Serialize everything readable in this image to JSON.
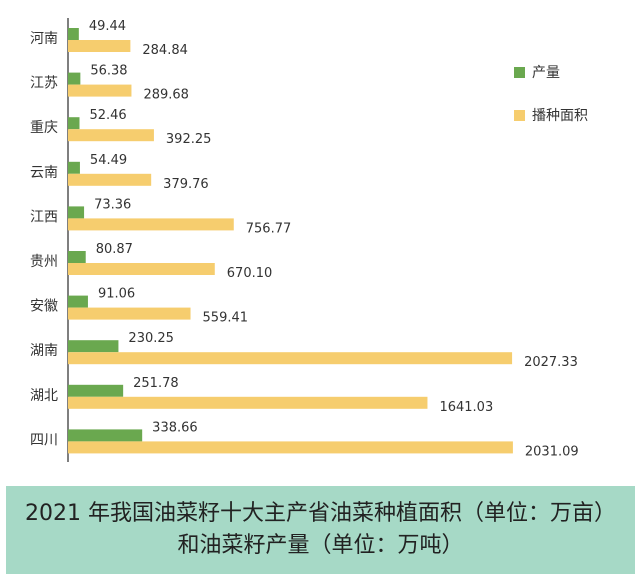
{
  "chart_data": {
    "type": "bar",
    "orientation": "horizontal",
    "categories": [
      "河南",
      "江苏",
      "重庆",
      "云南",
      "江西",
      "贵州",
      "安徽",
      "湖南",
      "湖北",
      "四川"
    ],
    "series": [
      {
        "name": "产量",
        "color": "#6aa84f",
        "values": [
          49.44,
          56.38,
          52.46,
          54.49,
          73.36,
          80.87,
          91.06,
          230.25,
          251.78,
          338.66
        ]
      },
      {
        "name": "播种面积",
        "color": "#f6cd6e",
        "values": [
          284.84,
          289.68,
          392.25,
          379.76,
          756.77,
          670.1,
          559.41,
          2027.33,
          1641.03,
          2031.09
        ]
      }
    ],
    "value_labels": {
      "产量": [
        "49.44",
        "56.38",
        "52.46",
        "54.49",
        "73.36",
        "80.87",
        "91.06",
        "230.25",
        "251.78",
        "338.66"
      ],
      "播种面积": [
        "284.84",
        "289.68",
        "392.25",
        "379.76",
        "756.77",
        "670.10",
        "559.41",
        "2027.33",
        "1641.03",
        "2031.09"
      ]
    },
    "xlim": [
      0,
      2100
    ],
    "grid": false,
    "legend_position": "top-right",
    "title_lines": [
      "2021 年我国油菜籽十大主产省油菜种植面积（单位：万亩）",
      "和油菜籽产量（单位：万吨）"
    ]
  }
}
